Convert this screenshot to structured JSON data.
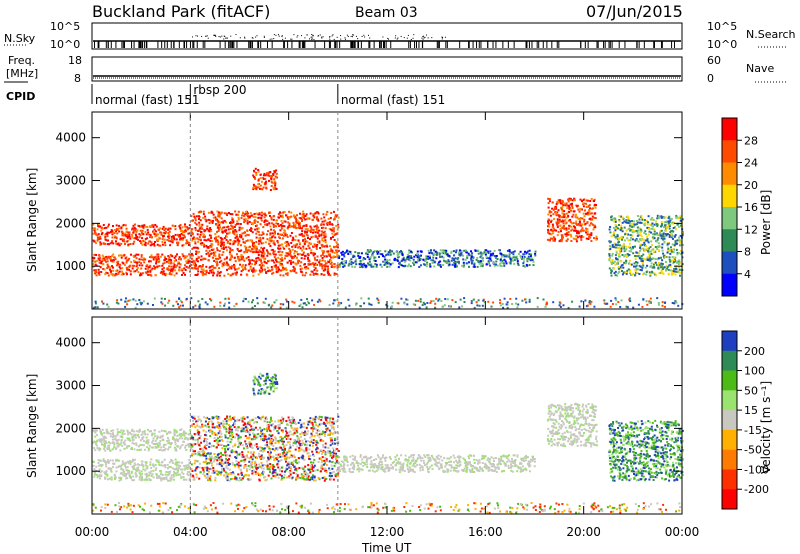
{
  "header": {
    "title": "Buckland Park (fitACF)",
    "beam": "Beam 03",
    "date": "07/Jun/2015"
  },
  "status_panels": {
    "nsky_label": "N.Sky",
    "nsky_ticks": [
      "10^5",
      "10^0"
    ],
    "nsearch_label": "N.Search",
    "nsearch_ticks": [
      "10^5",
      "10^0"
    ],
    "freq_label": "Freq.",
    "freq_unit": "[MHz]",
    "freq_ticks": [
      "18",
      "8"
    ],
    "nave_label": "Nave",
    "nave_ticks": [
      "60",
      "0"
    ],
    "cpid_label": "CPID",
    "cpid_segments": [
      {
        "label": "normal (fast) 151",
        "start_h": 0,
        "end_h": 4
      },
      {
        "label": "rbsp 200",
        "start_h": 4,
        "end_h": 10
      },
      {
        "label": "normal (fast) 151",
        "start_h": 10,
        "end_h": 24
      }
    ]
  },
  "chart_data": [
    {
      "type": "heatmap",
      "name": "power-panel",
      "ylabel": "Slant Range [km]",
      "yticks": [
        1000,
        2000,
        3000,
        4000
      ],
      "ylim": [
        0,
        4600
      ],
      "xlim": [
        0,
        24
      ],
      "colorbar": {
        "label": "Power [dB]",
        "ticks": [
          "28",
          "24",
          "20",
          "16",
          "12",
          "8",
          "4"
        ],
        "colors": [
          "#ff0000",
          "#ff4a00",
          "#ff8c00",
          "#ffd700",
          "#7fc97f",
          "#2e8b57",
          "#1e4fbf",
          "#0000ff"
        ]
      },
      "regions": [
        {
          "t0": 0.0,
          "t1": 4.0,
          "r0": 800,
          "r1": 1300,
          "level": "high"
        },
        {
          "t0": 0.0,
          "t1": 4.0,
          "r0": 1500,
          "r1": 2000,
          "level": "high"
        },
        {
          "t0": 4.0,
          "t1": 10.0,
          "r0": 800,
          "r1": 2300,
          "level": "high"
        },
        {
          "t0": 6.5,
          "t1": 7.5,
          "r0": 2800,
          "r1": 3300,
          "level": "high"
        },
        {
          "t0": 10.0,
          "t1": 18.0,
          "r0": 1000,
          "r1": 1400,
          "level": "low"
        },
        {
          "t0": 18.5,
          "t1": 20.5,
          "r0": 1600,
          "r1": 2600,
          "level": "high"
        },
        {
          "t0": 21.0,
          "t1": 24.0,
          "r0": 800,
          "r1": 2200,
          "level": "mid"
        }
      ]
    },
    {
      "type": "heatmap",
      "name": "velocity-panel",
      "ylabel": "Slant Range [km]",
      "xlabel": "Time UT",
      "xticks": [
        "00:00",
        "04:00",
        "08:00",
        "12:00",
        "16:00",
        "20:00",
        "00:00"
      ],
      "yticks": [
        1000,
        2000,
        3000,
        4000
      ],
      "ylim": [
        0,
        4600
      ],
      "xlim": [
        0,
        24
      ],
      "colorbar": {
        "label": "Velocity [m s⁻¹]",
        "ticks": [
          "200",
          "100",
          "50",
          "15",
          "-15",
          "-50",
          "-100",
          "-200"
        ],
        "colors": [
          "#1e3fbf",
          "#2e8b57",
          "#4cbb17",
          "#9be36f",
          "#c8c8c0",
          "#ffb000",
          "#ff7a00",
          "#ff3000",
          "#ff0000"
        ]
      },
      "regions": [
        {
          "t0": 0.0,
          "t1": 4.0,
          "r0": 800,
          "r1": 1300,
          "level": "ground"
        },
        {
          "t0": 0.0,
          "t1": 4.0,
          "r0": 1500,
          "r1": 2000,
          "level": "ground"
        },
        {
          "t0": 4.0,
          "t1": 10.0,
          "r0": 800,
          "r1": 2300,
          "level": "mixed"
        },
        {
          "t0": 6.5,
          "t1": 7.5,
          "r0": 2800,
          "r1": 3300,
          "level": "positive"
        },
        {
          "t0": 10.0,
          "t1": 18.0,
          "r0": 1000,
          "r1": 1400,
          "level": "ground"
        },
        {
          "t0": 18.5,
          "t1": 20.5,
          "r0": 1600,
          "r1": 2600,
          "level": "ground"
        },
        {
          "t0": 21.0,
          "t1": 24.0,
          "r0": 800,
          "r1": 2200,
          "level": "positive"
        }
      ]
    }
  ]
}
